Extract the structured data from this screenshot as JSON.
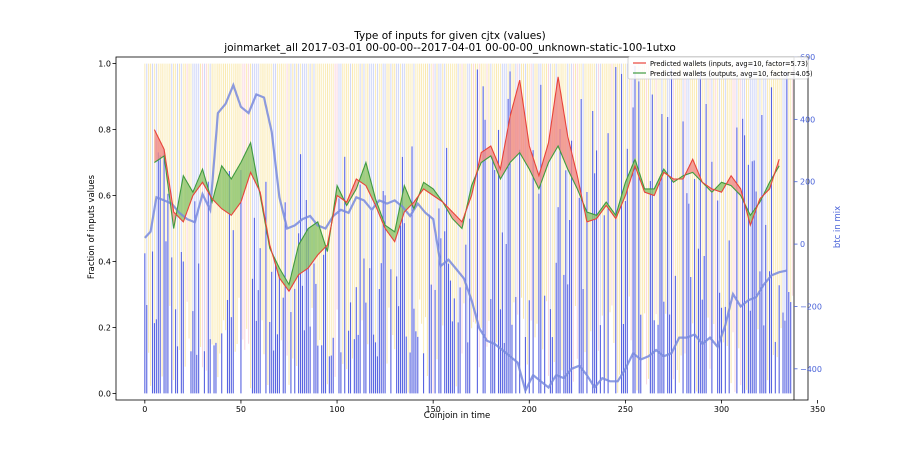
{
  "chart_data": {
    "type": "line",
    "title": "Type of inputs for given cjtx (values)",
    "subtitle": "joinmarket_all 2017-03-01 00-00-00--2017-04-01 00-00-00_unknown-static-100-1utxo",
    "xlabel": "Coinjoin in time",
    "ylabel": "Fraction of inputs values",
    "ylabel_right": "btc in mix",
    "xlim": [
      -15,
      345
    ],
    "ylim": [
      -0.02,
      1.02
    ],
    "ylim_right": [
      -500,
      600
    ],
    "xticks": [
      "0",
      "50",
      "100",
      "150",
      "200",
      "250",
      "300",
      "350"
    ],
    "yticks": [
      "0.0",
      "0.2",
      "0.4",
      "0.6",
      "0.8",
      "1.0"
    ],
    "yticks_right": [
      "−400",
      "−200",
      "0",
      "200",
      "400",
      "600"
    ],
    "legend_position": "top-right",
    "grid": false,
    "colors": {
      "inputs_line": "#e8433a",
      "inputs_fill": "#f08a84",
      "outputs_line": "#3f9a3f",
      "outputs_fill": "#8cc46a",
      "btc_line": "#7889dd",
      "axis_right": "#4a63d9",
      "background_bars_blue": "#1f2fd6",
      "background_bars_yellow": "#f5d66a",
      "background_bars_pink": "#f6b6c7",
      "background_bars_lightblue": "#9aa6f0"
    },
    "series": [
      {
        "name": "Predicted wallets (inputs, avg=10, factor=5.73)",
        "x": [
          5,
          10,
          15,
          20,
          25,
          30,
          35,
          40,
          45,
          50,
          55,
          60,
          65,
          70,
          75,
          80,
          85,
          90,
          95,
          100,
          105,
          110,
          115,
          120,
          125,
          130,
          135,
          140,
          145,
          150,
          155,
          160,
          165,
          170,
          175,
          180,
          185,
          190,
          195,
          200,
          205,
          210,
          215,
          220,
          225,
          230,
          235,
          240,
          245,
          250,
          255,
          260,
          265,
          270,
          275,
          280,
          285,
          290,
          295,
          300,
          305,
          310,
          315,
          320,
          325,
          330
        ],
        "values": [
          0.8,
          0.74,
          0.55,
          0.52,
          0.6,
          0.64,
          0.59,
          0.56,
          0.54,
          0.58,
          0.67,
          0.61,
          0.45,
          0.35,
          0.31,
          0.36,
          0.38,
          0.42,
          0.45,
          0.6,
          0.58,
          0.65,
          0.63,
          0.57,
          0.5,
          0.46,
          0.55,
          0.58,
          0.62,
          0.6,
          0.58,
          0.55,
          0.52,
          0.6,
          0.73,
          0.75,
          0.68,
          0.84,
          0.95,
          0.75,
          0.66,
          0.76,
          0.96,
          0.78,
          0.66,
          0.52,
          0.53,
          0.57,
          0.53,
          0.6,
          0.69,
          0.61,
          0.6,
          0.67,
          0.65,
          0.65,
          0.71,
          0.64,
          0.62,
          0.61,
          0.66,
          0.62,
          0.51,
          0.59,
          0.62,
          0.71
        ]
      },
      {
        "name": "Predicted wallets (outputs, avg=10, factor=4.05)",
        "x": [
          5,
          10,
          15,
          20,
          25,
          30,
          35,
          40,
          45,
          50,
          55,
          60,
          65,
          70,
          75,
          80,
          85,
          90,
          95,
          100,
          105,
          110,
          115,
          120,
          125,
          130,
          135,
          140,
          145,
          150,
          155,
          160,
          165,
          170,
          175,
          180,
          185,
          190,
          195,
          200,
          205,
          210,
          215,
          220,
          225,
          230,
          235,
          240,
          245,
          250,
          255,
          260,
          265,
          270,
          275,
          280,
          285,
          290,
          295,
          300,
          305,
          310,
          315,
          320,
          325,
          330
        ],
        "values": [
          0.7,
          0.72,
          0.5,
          0.66,
          0.61,
          0.68,
          0.58,
          0.69,
          0.65,
          0.7,
          0.76,
          0.6,
          0.44,
          0.38,
          0.33,
          0.45,
          0.5,
          0.52,
          0.43,
          0.63,
          0.57,
          0.62,
          0.7,
          0.59,
          0.51,
          0.49,
          0.63,
          0.56,
          0.64,
          0.62,
          0.58,
          0.53,
          0.5,
          0.63,
          0.7,
          0.72,
          0.65,
          0.7,
          0.73,
          0.68,
          0.62,
          0.7,
          0.75,
          0.68,
          0.62,
          0.55,
          0.54,
          0.58,
          0.54,
          0.64,
          0.71,
          0.62,
          0.62,
          0.68,
          0.64,
          0.66,
          0.67,
          0.64,
          0.61,
          0.64,
          0.63,
          0.6,
          0.54,
          0.58,
          0.64,
          0.69
        ]
      },
      {
        "axis": "right",
        "x": [
          0,
          3,
          6,
          10,
          14,
          18,
          22,
          26,
          30,
          34,
          38,
          42,
          46,
          50,
          54,
          58,
          62,
          66,
          70,
          74,
          78,
          82,
          86,
          90,
          94,
          98,
          102,
          106,
          110,
          114,
          118,
          122,
          126,
          130,
          134,
          138,
          142,
          146,
          150,
          154,
          158,
          162,
          166,
          170,
          174,
          178,
          182,
          186,
          190,
          194,
          198,
          202,
          206,
          210,
          214,
          218,
          222,
          226,
          230,
          234,
          238,
          242,
          246,
          250,
          254,
          258,
          262,
          266,
          270,
          274,
          278,
          282,
          286,
          290,
          294,
          298,
          302,
          306,
          310,
          314,
          318,
          322,
          326,
          330,
          334
        ],
        "values": [
          20,
          40,
          150,
          140,
          130,
          100,
          80,
          70,
          160,
          110,
          420,
          450,
          510,
          440,
          420,
          480,
          470,
          360,
          150,
          50,
          60,
          80,
          90,
          60,
          50,
          90,
          110,
          100,
          150,
          140,
          110,
          140,
          130,
          140,
          120,
          90,
          130,
          100,
          80,
          -70,
          -50,
          -80,
          -110,
          -180,
          -270,
          -310,
          -320,
          -340,
          -360,
          -380,
          -470,
          -420,
          -440,
          -460,
          -420,
          -430,
          -400,
          -390,
          -420,
          -460,
          -430,
          -440,
          -440,
          -400,
          -350,
          -370,
          -360,
          -340,
          -360,
          -350,
          -300,
          -300,
          -290,
          -320,
          -300,
          -330,
          -260,
          -160,
          -200,
          -180,
          -170,
          -130,
          -100,
          -90,
          -85
        ]
      }
    ]
  }
}
